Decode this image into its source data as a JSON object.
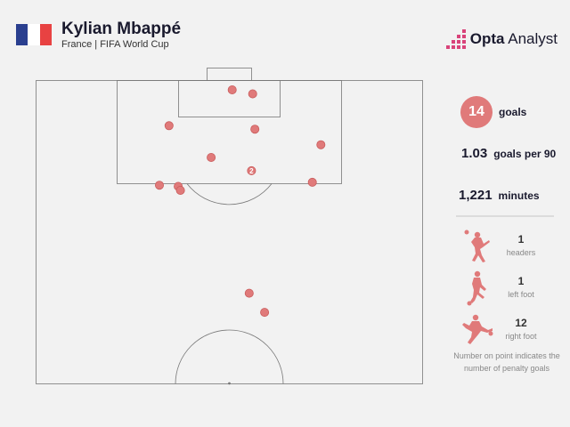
{
  "header": {
    "title": "Kylian Mbappé",
    "subtitle": "France | FIFA World Cup",
    "flag_colors": [
      "#2a3f8f",
      "#ffffff",
      "#e84242"
    ]
  },
  "brand": {
    "bold": "Opta",
    "rest": "Analyst",
    "logo_color": "#d9437a"
  },
  "stats": {
    "goals_value": "14",
    "goals_label": "goals",
    "per90_value": "1.03",
    "per90_label": "goals per 90",
    "minutes_value": "1,221",
    "minutes_label": "minutes"
  },
  "shot_types": [
    {
      "icon": "header-icon",
      "count": "1",
      "label": "headers"
    },
    {
      "icon": "left-foot-icon",
      "count": "1",
      "label": "left foot"
    },
    {
      "icon": "right-foot-icon",
      "count": "12",
      "label": "right foot"
    }
  ],
  "note": "Number on point indicates the number of penalty goals",
  "colors": {
    "goal": "#e07a7a",
    "goal_stroke": "#c95c5c",
    "line": "#777777"
  },
  "chart_data": {
    "type": "scatter",
    "pitch": "attacking half, goal at top",
    "points": [
      {
        "x_m": 34.5,
        "y_m": 16.3,
        "penalties": ""
      },
      {
        "x_m": 38.1,
        "y_m": 17.0,
        "penalties": ""
      },
      {
        "x_m": 23.4,
        "y_m": 22.5,
        "penalties": ""
      },
      {
        "x_m": 38.5,
        "y_m": 23.1,
        "penalties": ""
      },
      {
        "x_m": 50.1,
        "y_m": 25.8,
        "penalties": ""
      },
      {
        "x_m": 30.8,
        "y_m": 28.0,
        "penalties": ""
      },
      {
        "x_m": 37.9,
        "y_m": 30.3,
        "penalties": "2"
      },
      {
        "x_m": 21.7,
        "y_m": 32.8,
        "penalties": ""
      },
      {
        "x_m": 25.0,
        "y_m": 33.0,
        "penalties": ""
      },
      {
        "x_m": 25.4,
        "y_m": 33.7,
        "penalties": ""
      },
      {
        "x_m": 48.6,
        "y_m": 32.3,
        "penalties": ""
      },
      {
        "x_m": 37.5,
        "y_m": 51.5,
        "penalties": ""
      },
      {
        "x_m": 40.2,
        "y_m": 54.8,
        "penalties": ""
      }
    ]
  }
}
